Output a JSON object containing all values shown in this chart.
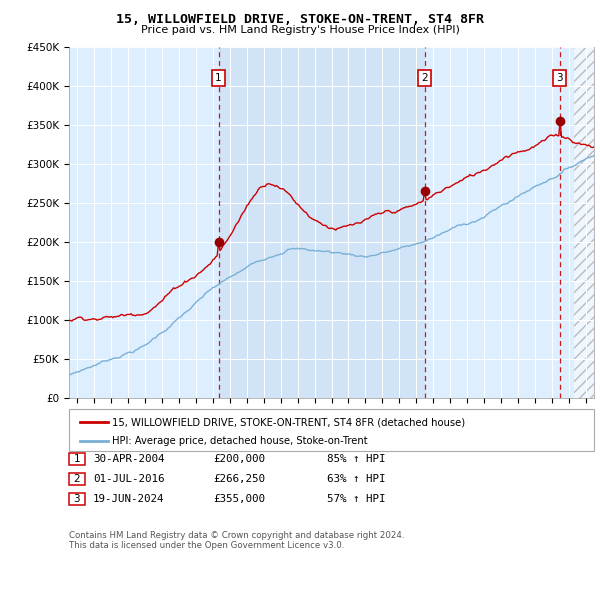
{
  "title": "15, WILLOWFIELD DRIVE, STOKE-ON-TRENT, ST4 8FR",
  "subtitle": "Price paid vs. HM Land Registry's House Price Index (HPI)",
  "ylim": [
    0,
    450000
  ],
  "yticks": [
    0,
    50000,
    100000,
    150000,
    200000,
    250000,
    300000,
    350000,
    400000,
    450000
  ],
  "ytick_labels": [
    "£0",
    "£50K",
    "£100K",
    "£150K",
    "£200K",
    "£250K",
    "£300K",
    "£350K",
    "£400K",
    "£450K"
  ],
  "xlim_start": 1995.5,
  "xlim_end": 2026.5,
  "background_color": "#ffffff",
  "plot_bg_color": "#ddeeff",
  "grid_color": "#ffffff",
  "shade_start": 2004.33,
  "shade_end": 2016.5,
  "hatch_start": 2025.3,
  "sale_dates": [
    2004.33,
    2016.5,
    2024.47
  ],
  "sale_prices": [
    200000,
    266250,
    355000
  ],
  "sale_labels": [
    "1",
    "2",
    "3"
  ],
  "sale_line_color": "#cc0000",
  "hpi_line_color": "#7ab0d4",
  "legend_red_label": "15, WILLOWFIELD DRIVE, STOKE-ON-TRENT, ST4 8FR (detached house)",
  "legend_blue_label": "HPI: Average price, detached house, Stoke-on-Trent",
  "table_rows": [
    {
      "num": "1",
      "date": "30-APR-2004",
      "price": "£200,000",
      "change": "85% ↑ HPI"
    },
    {
      "num": "2",
      "date": "01-JUL-2016",
      "price": "£266,250",
      "change": "63% ↑ HPI"
    },
    {
      "num": "3",
      "date": "19-JUN-2024",
      "price": "£355,000",
      "change": "57% ↑ HPI"
    }
  ],
  "footnote": "Contains HM Land Registry data © Crown copyright and database right 2024.\nThis data is licensed under the Open Government Licence v3.0."
}
